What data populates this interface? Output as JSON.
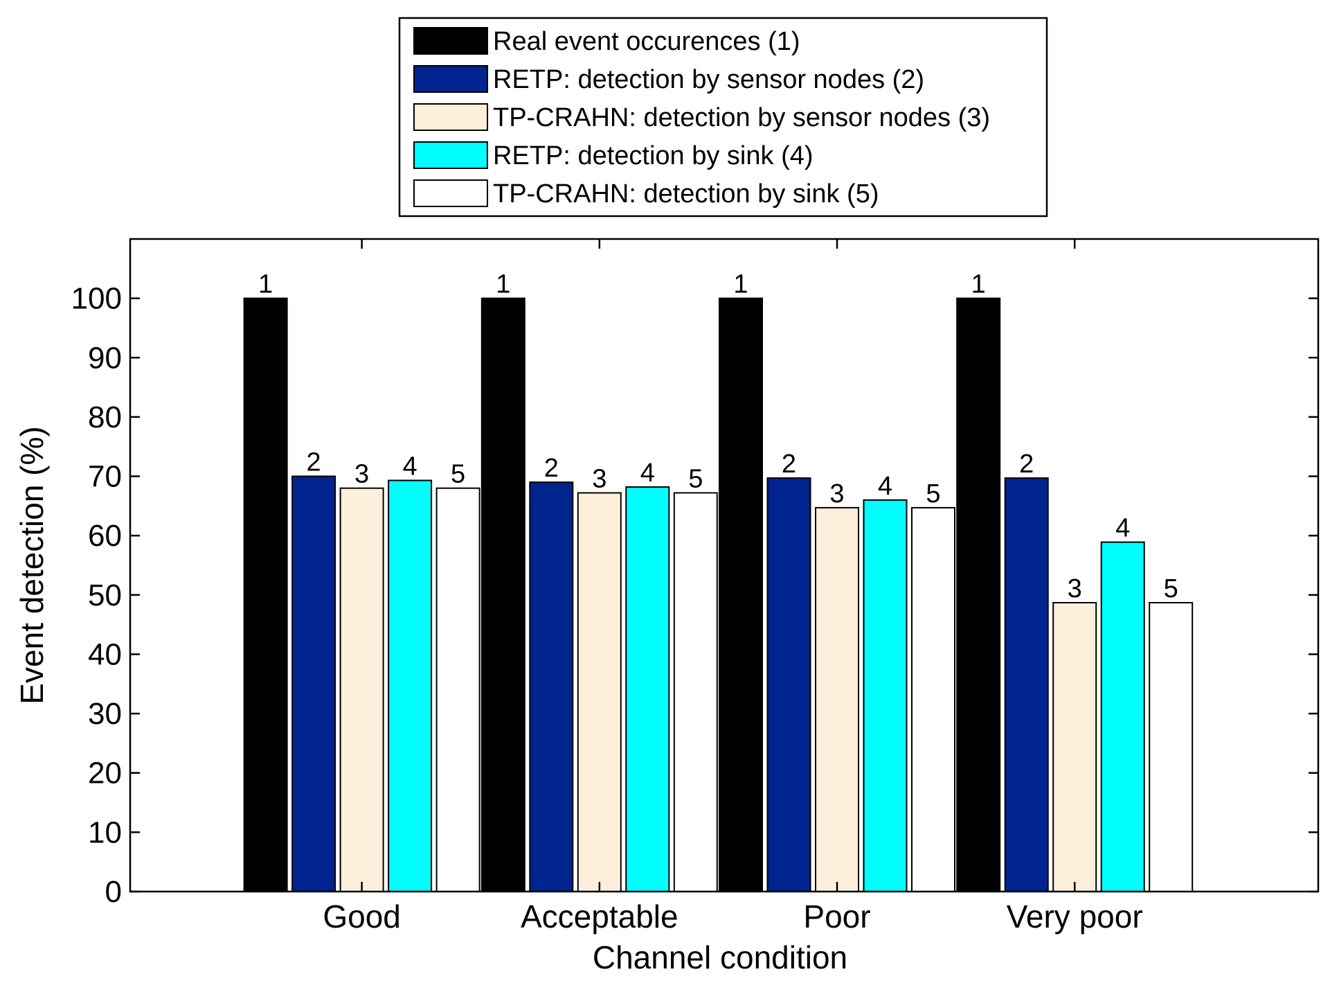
{
  "chart_data": {
    "type": "bar",
    "title": "",
    "xlabel": "Channel condition",
    "ylabel": "Event detection (%)",
    "ylim": [
      0,
      110
    ],
    "yticks": [
      0,
      10,
      20,
      30,
      40,
      50,
      60,
      70,
      80,
      90,
      100
    ],
    "grid": false,
    "legend_position": "top-center (outside plot)",
    "categories": [
      "Good",
      "Acceptable",
      "Poor",
      "Very poor"
    ],
    "series": [
      {
        "name": "Real event occurences (1)",
        "label": "1",
        "color": "#000000",
        "values": [
          100,
          100,
          100,
          100
        ]
      },
      {
        "name": "RETP: detection by sensor nodes (2)",
        "label": "2",
        "color": "#00248f",
        "values": [
          70,
          69,
          69.7,
          69.7
        ]
      },
      {
        "name": "TP-CRAHN: detection by sensor nodes (3)",
        "label": "3",
        "color": "#fdefdb",
        "values": [
          68,
          67.2,
          64.7,
          48.7
        ]
      },
      {
        "name": "RETP: detection by sink (4)",
        "label": "4",
        "color": "#00ffff",
        "values": [
          69.3,
          68.2,
          66,
          58.9
        ]
      },
      {
        "name": "TP-CRAHN: detection by sink (5)",
        "label": "5",
        "color": "#ffffff",
        "values": [
          68,
          67.2,
          64.7,
          48.7
        ]
      }
    ]
  }
}
